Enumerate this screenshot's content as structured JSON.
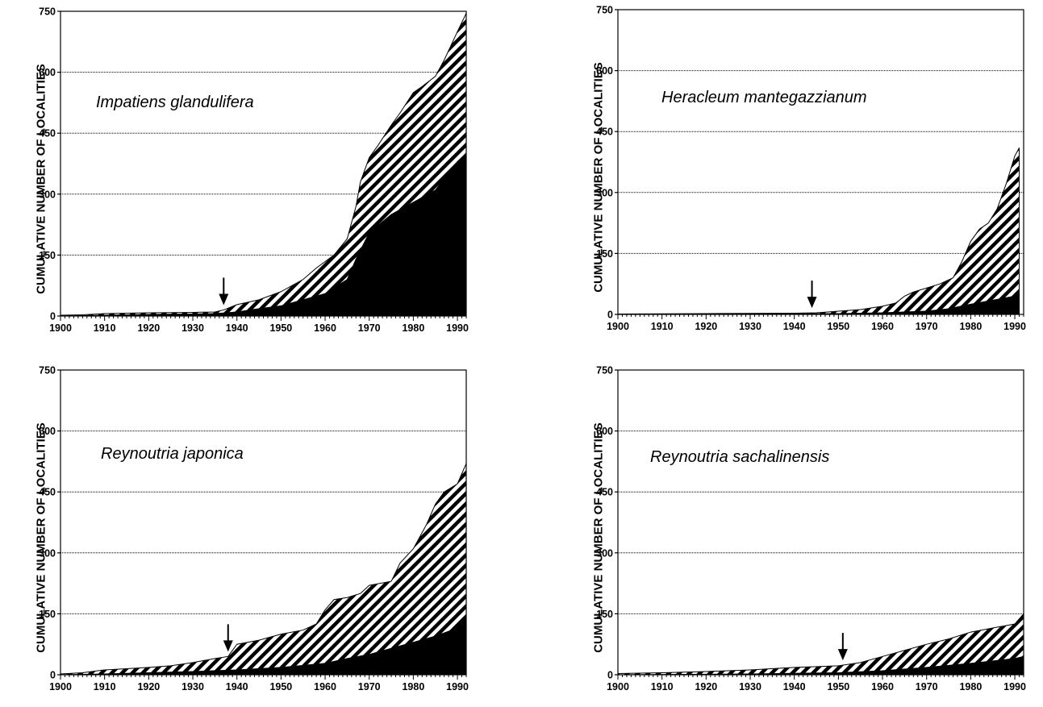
{
  "chart_data": [
    {
      "type": "area",
      "title": "Impatiens glandulifera",
      "xlabel": "",
      "ylabel": "CUMULATIVE NUMBER OF LOCALITIES",
      "xlim": [
        1900,
        1992
      ],
      "ylim": [
        0,
        750
      ],
      "x_ticks": [
        "1900",
        "1910",
        "1920",
        "1930",
        "1940",
        "1950",
        "1960",
        "1970",
        "1980",
        "1990"
      ],
      "y_ticks": [
        "0",
        "150",
        "300",
        "450",
        "600",
        "750"
      ],
      "grid": true,
      "arrow_year": 1937,
      "series": [
        {
          "fill": "hatched",
          "x": [
            1900,
            1905,
            1910,
            1915,
            1920,
            1930,
            1935,
            1937,
            1940,
            1945,
            1950,
            1955,
            1958,
            1962,
            1965,
            1967,
            1968,
            1970,
            1972,
            1975,
            1977,
            1980,
            1982,
            1985,
            1987,
            1990,
            1992
          ],
          "values": [
            2,
            3,
            6,
            7,
            8,
            9,
            10,
            15,
            28,
            40,
            60,
            90,
            118,
            150,
            190,
            270,
            330,
            390,
            420,
            470,
            500,
            550,
            565,
            590,
            630,
            700,
            745
          ]
        },
        {
          "fill": "solid",
          "x": [
            1900,
            1910,
            1920,
            1930,
            1935,
            1940,
            1945,
            1950,
            1955,
            1960,
            1965,
            1967,
            1970,
            1975,
            1980,
            1985,
            1990,
            1992
          ],
          "values": [
            0,
            2,
            4,
            5,
            6,
            10,
            18,
            25,
            40,
            55,
            90,
            140,
            205,
            250,
            280,
            310,
            380,
            400
          ]
        }
      ]
    },
    {
      "type": "area",
      "title": "Heracleum mantegazzianum",
      "xlabel": "",
      "ylabel": "CUMULATIVE NUMBER OF LOCALITIES",
      "xlim": [
        1900,
        1992
      ],
      "ylim": [
        0,
        750
      ],
      "x_ticks": [
        "1900",
        "1910",
        "1920",
        "1930",
        "1940",
        "1950",
        "1960",
        "1970",
        "1980",
        "1990"
      ],
      "y_ticks": [
        "0",
        "150",
        "300",
        "450",
        "600",
        "750"
      ],
      "grid": true,
      "arrow_year": 1944,
      "series": [
        {
          "fill": "hatched",
          "x": [
            1900,
            1920,
            1940,
            1945,
            1950,
            1955,
            1960,
            1963,
            1965,
            1967,
            1970,
            1973,
            1976,
            1978,
            1980,
            1982,
            1984,
            1986,
            1988,
            1990,
            1991
          ],
          "values": [
            1,
            2,
            3,
            4,
            8,
            12,
            20,
            28,
            45,
            55,
            65,
            75,
            90,
            130,
            180,
            210,
            225,
            260,
            320,
            390,
            410
          ]
        },
        {
          "fill": "solid",
          "x": [
            1900,
            1950,
            1960,
            1970,
            1975,
            1980,
            1985,
            1990,
            1991
          ],
          "values": [
            0,
            2,
            4,
            8,
            14,
            25,
            35,
            45,
            50
          ]
        }
      ]
    },
    {
      "type": "area",
      "title": "Reynoutria japonica",
      "xlabel": "",
      "ylabel": "CUMULATIVE NUMBER OF LOCALITIES",
      "xlim": [
        1900,
        1992
      ],
      "ylim": [
        0,
        750
      ],
      "x_ticks": [
        "1900",
        "1910",
        "1920",
        "1930",
        "1940",
        "1950",
        "1960",
        "1970",
        "1980",
        "1990"
      ],
      "y_ticks": [
        "0",
        "150",
        "300",
        "450",
        "600",
        "750"
      ],
      "grid": true,
      "arrow_year": 1938,
      "series": [
        {
          "fill": "hatched",
          "x": [
            1900,
            1905,
            1910,
            1915,
            1920,
            1925,
            1930,
            1935,
            1938,
            1940,
            1945,
            1950,
            1955,
            1958,
            1960,
            1962,
            1965,
            1968,
            1970,
            1975,
            1977,
            1980,
            1983,
            1985,
            1987,
            1990,
            1992
          ],
          "values": [
            2,
            5,
            12,
            15,
            18,
            22,
            30,
            40,
            45,
            75,
            85,
            100,
            110,
            125,
            160,
            185,
            190,
            200,
            220,
            230,
            275,
            310,
            370,
            420,
            450,
            470,
            520
          ]
        },
        {
          "fill": "solid",
          "x": [
            1900,
            1910,
            1920,
            1930,
            1940,
            1950,
            1960,
            1965,
            1970,
            1975,
            1980,
            1985,
            1990,
            1992
          ],
          "values": [
            0,
            2,
            5,
            8,
            12,
            18,
            28,
            40,
            50,
            65,
            80,
            95,
            115,
            140
          ]
        }
      ]
    },
    {
      "type": "area",
      "title": "Reynoutria sachalinensis",
      "xlabel": "",
      "ylabel": "CUMULATIVE NUMBER OF LOCALITIES",
      "xlim": [
        1900,
        1992
      ],
      "ylim": [
        0,
        750
      ],
      "x_ticks": [
        "1900",
        "1910",
        "1920",
        "1930",
        "1940",
        "1950",
        "1960",
        "1970",
        "1980",
        "1990"
      ],
      "y_ticks": [
        "0",
        "150",
        "300",
        "450",
        "600",
        "750"
      ],
      "grid": true,
      "arrow_year": 1951,
      "series": [
        {
          "fill": "hatched",
          "x": [
            1900,
            1910,
            1920,
            1930,
            1940,
            1950,
            1955,
            1960,
            1965,
            1970,
            1975,
            1980,
            1985,
            1990,
            1992
          ],
          "values": [
            3,
            5,
            8,
            12,
            18,
            22,
            30,
            45,
            60,
            75,
            88,
            105,
            115,
            125,
            150
          ]
        },
        {
          "fill": "solid",
          "x": [
            1900,
            1930,
            1950,
            1960,
            1970,
            1980,
            1990,
            1992
          ],
          "values": [
            0,
            2,
            5,
            10,
            18,
            28,
            40,
            45
          ]
        }
      ]
    }
  ]
}
